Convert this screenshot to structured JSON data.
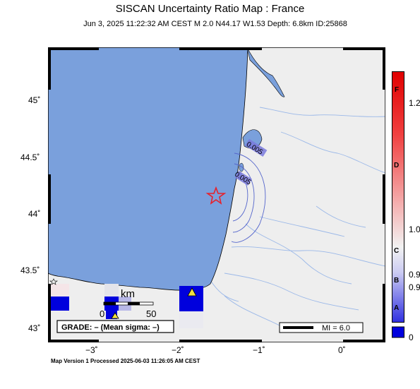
{
  "header": {
    "title": "SISCAN Uncertainty Ratio Map : France",
    "subtitle": "Jun  3, 2025 11:22:32 AM CEST   M 2.0   N44.17 W1.53   Depth: 6.8km   ID:25868"
  },
  "axes": {
    "lat_labels": [
      "45˚",
      "44.5˚",
      "44˚",
      "43.5˚",
      "43˚"
    ],
    "lon_labels": [
      "−3˚",
      "−2˚",
      "−1˚",
      "0˚"
    ]
  },
  "contours": [
    "0.005",
    "0.005"
  ],
  "scalebar": {
    "unit": "km",
    "zero": "0",
    "max": "50"
  },
  "grade_box": "GRADE: – (Mean sigma: –)",
  "legend": {
    "mi_label": "MI = 6.0"
  },
  "colorbar": {
    "values": [
      "1.2",
      "1.0",
      "0.9",
      "0.9",
      "0"
    ],
    "letters": [
      "F",
      "D",
      "C",
      "B",
      "A"
    ]
  },
  "footer": "Map Version 1 Processed 2025-06-03 11:26:05 AM CEST",
  "colors": {
    "ocean": "#7aa0dc",
    "land": "#eeeeee",
    "epicenter": "#e8202a",
    "station": "#f0e040",
    "cell": "#0000dd"
  }
}
